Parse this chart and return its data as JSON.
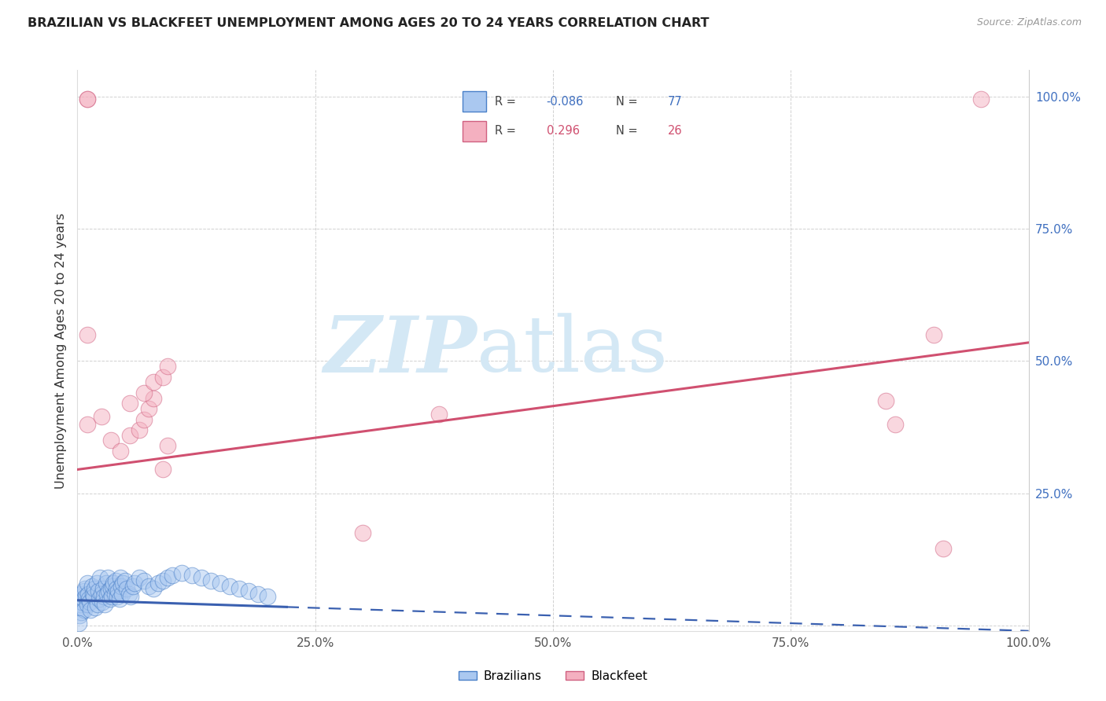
{
  "title": "BRAZILIAN VS BLACKFEET UNEMPLOYMENT AMONG AGES 20 TO 24 YEARS CORRELATION CHART",
  "source": "Source: ZipAtlas.com",
  "ylabel": "Unemployment Among Ages 20 to 24 years",
  "xlim": [
    0.0,
    1.0
  ],
  "ylim": [
    -0.01,
    1.05
  ],
  "xticks": [
    0.0,
    0.25,
    0.5,
    0.75,
    1.0
  ],
  "xticklabels": [
    "0.0%",
    "25.0%",
    "50.0%",
    "75.0%",
    "100.0%"
  ],
  "yticks": [
    0.0,
    0.25,
    0.5,
    0.75,
    1.0
  ],
  "yticklabels_right": [
    "",
    "25.0%",
    "50.0%",
    "75.0%",
    "100.0%"
  ],
  "R_bz": -0.086,
  "N_bz": 77,
  "R_bk": 0.296,
  "N_bk": 26,
  "blue_face": "#aac8f0",
  "blue_edge": "#4a80c8",
  "pink_face": "#f4b0c0",
  "pink_edge": "#d06080",
  "blue_line": "#3a60b0",
  "pink_line": "#d05070",
  "blue_text": "#4070c0",
  "pink_text": "#d05070",
  "watermark_color": "#d4e8f5",
  "bg": "#ffffff",
  "brazilians_x": [
    0.001,
    0.002,
    0.003,
    0.003,
    0.004,
    0.005,
    0.005,
    0.006,
    0.007,
    0.007,
    0.008,
    0.009,
    0.01,
    0.01,
    0.011,
    0.012,
    0.013,
    0.014,
    0.015,
    0.016,
    0.017,
    0.018,
    0.019,
    0.02,
    0.021,
    0.022,
    0.023,
    0.024,
    0.025,
    0.026,
    0.027,
    0.028,
    0.029,
    0.03,
    0.031,
    0.032,
    0.033,
    0.034,
    0.035,
    0.036,
    0.037,
    0.038,
    0.039,
    0.04,
    0.041,
    0.042,
    0.043,
    0.044,
    0.045,
    0.046,
    0.047,
    0.048,
    0.05,
    0.052,
    0.054,
    0.056,
    0.058,
    0.06,
    0.065,
    0.07,
    0.075,
    0.08,
    0.085,
    0.09,
    0.095,
    0.1,
    0.11,
    0.12,
    0.13,
    0.14,
    0.15,
    0.16,
    0.17,
    0.18,
    0.19,
    0.2,
    0.001
  ],
  "brazilians_y": [
    0.035,
    0.02,
    0.04,
    0.055,
    0.025,
    0.045,
    0.06,
    0.05,
    0.03,
    0.065,
    0.07,
    0.055,
    0.04,
    0.08,
    0.06,
    0.05,
    0.045,
    0.03,
    0.075,
    0.06,
    0.055,
    0.07,
    0.035,
    0.08,
    0.04,
    0.065,
    0.05,
    0.09,
    0.06,
    0.045,
    0.07,
    0.055,
    0.04,
    0.08,
    0.06,
    0.09,
    0.065,
    0.05,
    0.07,
    0.055,
    0.075,
    0.08,
    0.06,
    0.085,
    0.07,
    0.055,
    0.065,
    0.05,
    0.09,
    0.075,
    0.06,
    0.08,
    0.085,
    0.07,
    0.06,
    0.055,
    0.075,
    0.08,
    0.09,
    0.085,
    0.075,
    0.07,
    0.08,
    0.085,
    0.09,
    0.095,
    0.1,
    0.095,
    0.09,
    0.085,
    0.08,
    0.075,
    0.07,
    0.065,
    0.06,
    0.055,
    0.005
  ],
  "blackfeet_x": [
    0.01,
    0.01,
    0.01,
    0.01,
    0.025,
    0.035,
    0.045,
    0.055,
    0.065,
    0.07,
    0.075,
    0.08,
    0.09,
    0.095,
    0.3,
    0.38,
    0.85,
    0.86,
    0.9,
    0.91,
    0.95,
    0.055,
    0.07,
    0.08,
    0.09,
    0.095
  ],
  "blackfeet_y": [
    0.995,
    0.995,
    0.55,
    0.38,
    0.395,
    0.35,
    0.33,
    0.36,
    0.37,
    0.39,
    0.41,
    0.43,
    0.295,
    0.34,
    0.175,
    0.4,
    0.425,
    0.38,
    0.55,
    0.145,
    0.995,
    0.42,
    0.44,
    0.46,
    0.47,
    0.49
  ],
  "bz_line_x0": 0.0,
  "bz_line_x_solid_end": 0.22,
  "bz_line_x1": 1.0,
  "bz_line_y0": 0.048,
  "bz_line_y1": -0.01,
  "bk_line_x0": 0.0,
  "bk_line_x1": 1.0,
  "bk_line_y0": 0.295,
  "bk_line_y1": 0.535
}
